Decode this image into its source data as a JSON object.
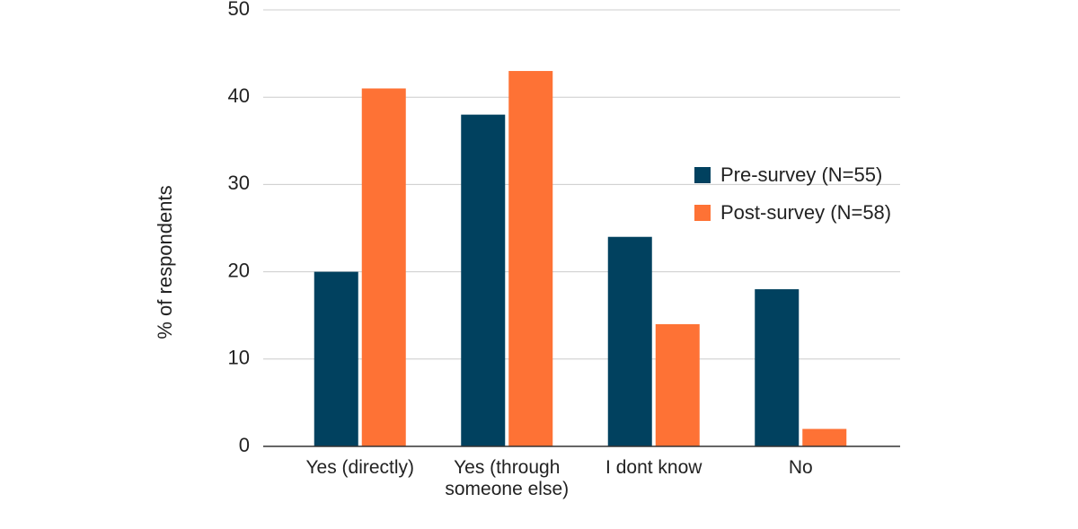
{
  "chart_data": {
    "type": "bar",
    "categories": [
      "Yes (directly)",
      "Yes (through someone else)",
      "I dont know",
      "No"
    ],
    "series": [
      {
        "name": "Pre-survey (N=55)",
        "color": "#01415f",
        "values": [
          20,
          38,
          24,
          18
        ]
      },
      {
        "name": "Post-survey (N=58)",
        "color": "#fe7235",
        "values": [
          41,
          43,
          14,
          2
        ]
      }
    ],
    "y_label": "% of respondents",
    "ylim": [
      0,
      50
    ],
    "yticks": [
      0,
      10,
      20,
      30,
      40,
      50
    ],
    "grid": true,
    "legend": "right"
  }
}
